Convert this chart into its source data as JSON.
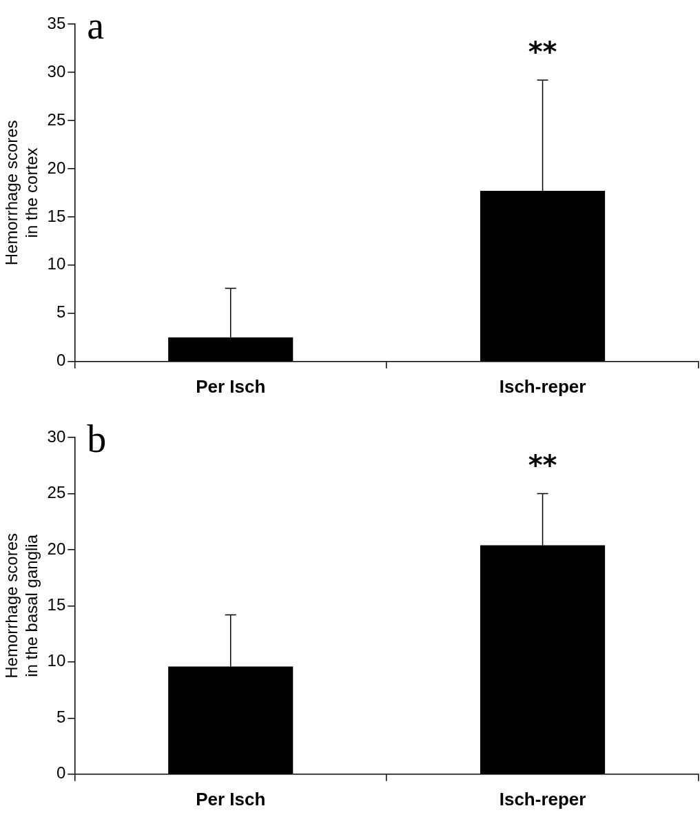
{
  "chart_data": [
    {
      "type": "bar",
      "title": "a",
      "ylabel": "Hemorrhage scores\nin the cortex",
      "categories": [
        "Per Isch",
        "Isch-reper"
      ],
      "values": [
        2.5,
        17.7
      ],
      "errors": [
        [
          2.5,
          7.6
        ],
        [
          17.7,
          29.2
        ]
      ],
      "color": "#000000",
      "ylim": [
        0,
        35
      ],
      "yticks": [
        0,
        5,
        10,
        15,
        20,
        25,
        30,
        35
      ],
      "grid": false,
      "annotations": [
        "**"
      ]
    },
    {
      "type": "bar",
      "title": "b",
      "ylabel": "Hemorrhage scores\nin the basal ganglia",
      "categories": [
        "Per Isch",
        "Isch-reper"
      ],
      "values": [
        9.6,
        20.4
      ],
      "errors": [
        [
          9.6,
          14.2
        ],
        [
          20.4,
          25
        ]
      ],
      "color": "#000000",
      "ylim": [
        0,
        30
      ],
      "yticks": [
        0,
        5,
        10,
        15,
        20,
        25,
        30
      ],
      "grid": false,
      "annotations": [
        "**"
      ]
    }
  ]
}
